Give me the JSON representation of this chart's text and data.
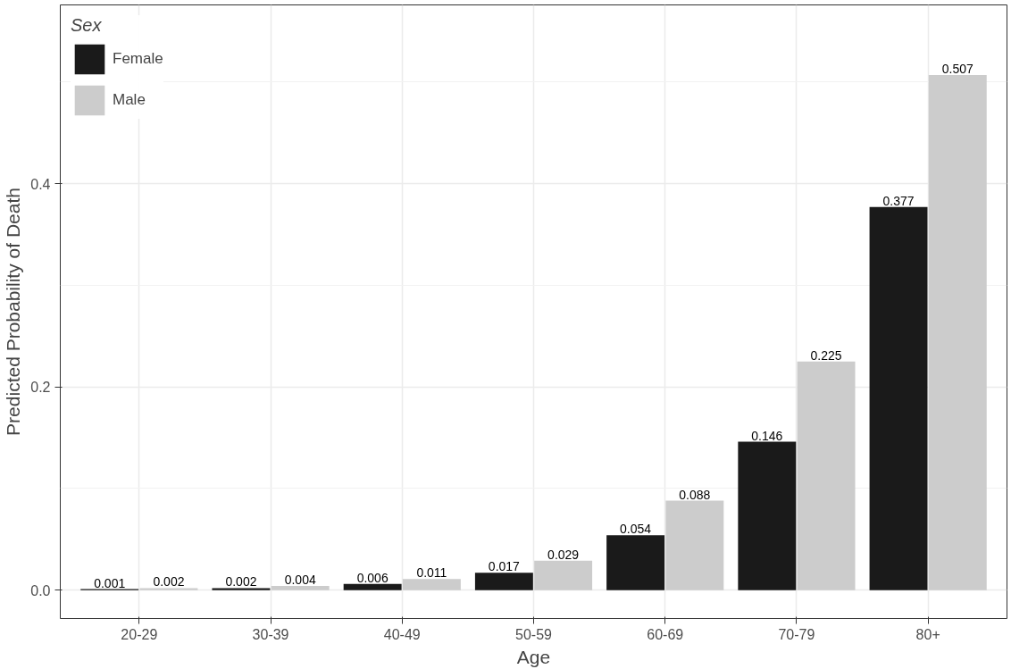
{
  "chart_data": {
    "type": "bar",
    "xlabel": "Age",
    "ylabel": "Predicted Probability of Death",
    "legend_title": "Sex",
    "categories": [
      "20-29",
      "30-39",
      "40-49",
      "50-59",
      "60-69",
      "70-79",
      "80+"
    ],
    "series": [
      {
        "name": "Female",
        "color": "#1a1a1a",
        "values": [
          0.001,
          0.002,
          0.006,
          0.017,
          0.054,
          0.146,
          0.377
        ]
      },
      {
        "name": "Male",
        "color": "#cccccc",
        "values": [
          0.002,
          0.004,
          0.011,
          0.029,
          0.088,
          0.225,
          0.507
        ]
      }
    ],
    "ylim": [
      -0.028,
      0.576
    ],
    "yticks": [
      {
        "value": 0,
        "label": "0.0"
      },
      0.2,
      0.4
    ],
    "data_labels": true,
    "grid": true,
    "legend": "top left"
  }
}
